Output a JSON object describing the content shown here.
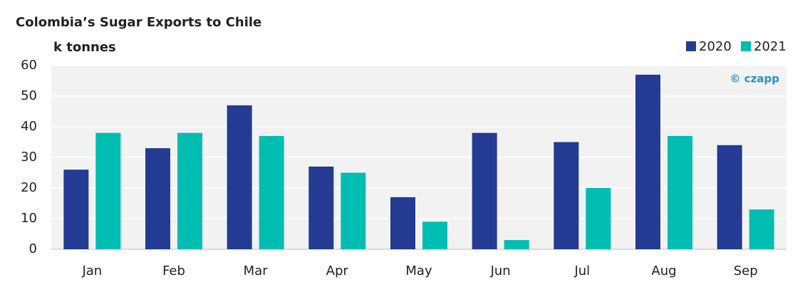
{
  "chart_data": {
    "type": "bar",
    "title": "Colombia’s Sugar Exports to Chile",
    "ylabel": "k tonnes",
    "watermark": "© czapp",
    "categories": [
      "Jan",
      "Feb",
      "Mar",
      "Apr",
      "May",
      "Jun",
      "Jul",
      "Aug",
      "Sep"
    ],
    "series": [
      {
        "name": "2020",
        "color": "#233b92",
        "values": [
          26,
          33,
          47,
          27,
          17,
          38,
          35,
          57,
          34
        ]
      },
      {
        "name": "2021",
        "color": "#00bdb2",
        "values": [
          38,
          38,
          37,
          25,
          9,
          3,
          20,
          37,
          13
        ]
      }
    ],
    "ylim": [
      0,
      60
    ],
    "yticks": [
      0,
      10,
      20,
      30,
      40,
      50,
      60
    ],
    "grid": true,
    "legend": "top-right"
  }
}
